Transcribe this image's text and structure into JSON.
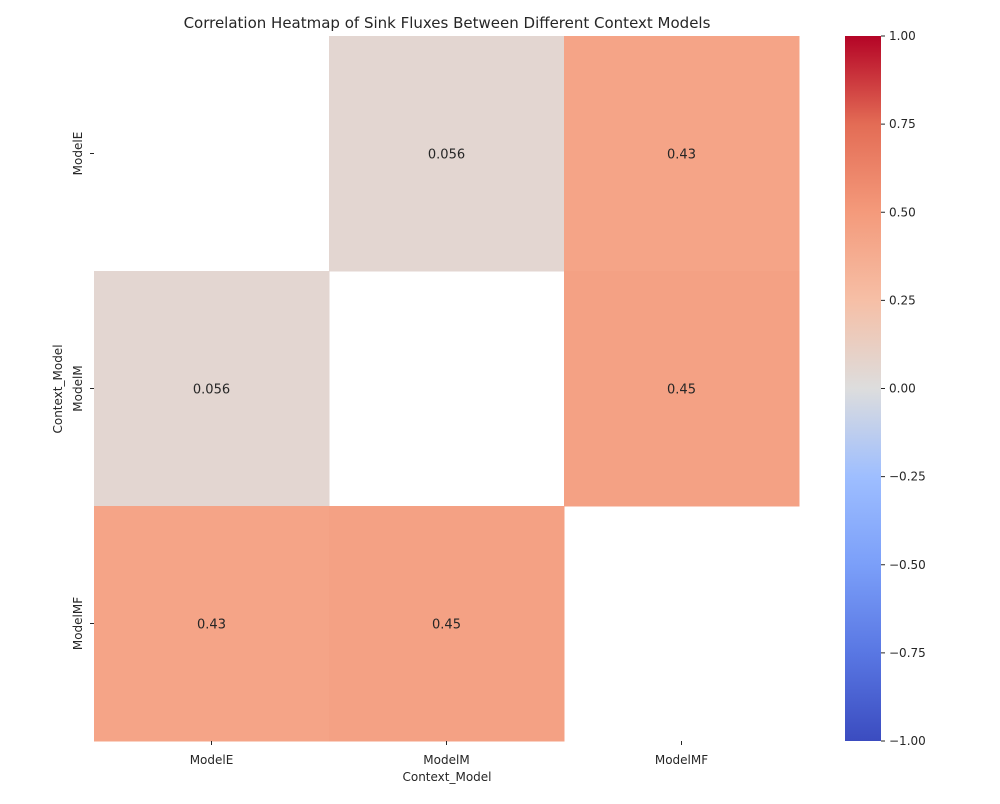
{
  "chart_data": {
    "type": "heatmap",
    "title": "Correlation Heatmap of Sink Fluxes Between Different Context Models",
    "xlabel": "Context_Model",
    "ylabel": "Context_Model",
    "x_categories": [
      "ModelE",
      "ModelM",
      "ModelMF"
    ],
    "y_categories": [
      "ModelE",
      "ModelM",
      "ModelMF"
    ],
    "values": [
      [
        null,
        0.056,
        0.43
      ],
      [
        0.056,
        null,
        0.45
      ],
      [
        0.43,
        0.45,
        null
      ]
    ],
    "value_labels": [
      [
        "",
        "0.056",
        "0.43"
      ],
      [
        "0.056",
        "",
        "0.45"
      ],
      [
        "0.43",
        "0.45",
        ""
      ]
    ],
    "colormap": "coolwarm",
    "vmin": -1.0,
    "vmax": 1.0,
    "colorbar": {
      "ticks": [
        -1.0,
        -0.75,
        -0.5,
        -0.25,
        0.0,
        0.25,
        0.5,
        0.75,
        1.0
      ],
      "tick_labels": [
        "−1.00",
        "−0.75",
        "−0.50",
        "−0.25",
        "0.00",
        "0.25",
        "0.50",
        "0.75",
        "1.00"
      ]
    },
    "colors": {
      "low": "#3b4cc0",
      "mid": "#dddddd",
      "high": "#b40426"
    }
  }
}
